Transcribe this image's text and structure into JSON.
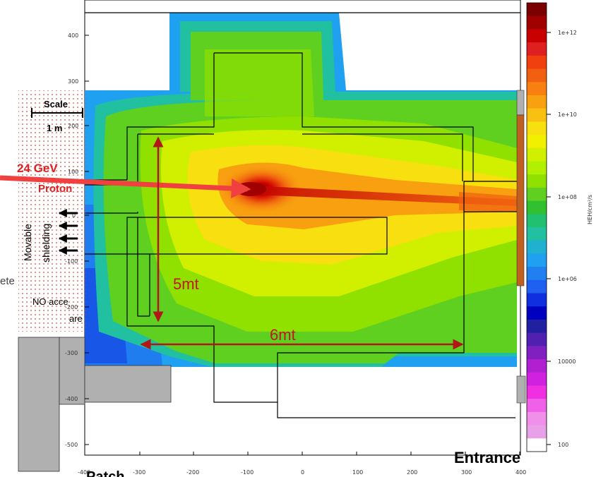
{
  "labels": {
    "beam_energy": "24 GeV",
    "beam_particle": "Proton",
    "scale_title": "Scale",
    "scale_value": "1 m",
    "movable_shielding_line1": "Movable",
    "movable_shielding_line2": "shielding",
    "concrete": "ete",
    "no_access_line1": "NO acce",
    "no_access_line2": "are",
    "dim_vertical": "5mt",
    "dim_horizontal": "6mt",
    "entrance": "Entrance",
    "patch": "Patch",
    "colorbar_unit": "HEH/cm²/s"
  },
  "axes": {
    "x_ticks": [
      "-400",
      "-300",
      "-200",
      "-100",
      "0",
      "100",
      "200",
      "300",
      "400"
    ],
    "y_ticks": [
      "400",
      "300",
      "200",
      "100",
      "0",
      "-100",
      "-200",
      "-300",
      "-400",
      "-500"
    ]
  },
  "colorbar": {
    "tick_labels": [
      "1e+12",
      "1e+10",
      "1e+08",
      "1e+06",
      "10000",
      "100"
    ],
    "colors": [
      "#7a0000",
      "#a00000",
      "#c80000",
      "#e02020",
      "#f04010",
      "#f06010",
      "#f88010",
      "#f8a010",
      "#f8c010",
      "#f8e010",
      "#f0f000",
      "#d0f000",
      "#b0f000",
      "#90e000",
      "#60d020",
      "#30c030",
      "#20c070",
      "#20c0a0",
      "#20b0d0",
      "#20a0f0",
      "#2080f0",
      "#2060f0",
      "#1030e0",
      "#0000c0",
      "#2020a0",
      "#5020b0",
      "#8020c0",
      "#b020d0",
      "#d020e0",
      "#f030e0",
      "#f060e8",
      "#f090e8",
      "#e8a0e8",
      "#ffffff"
    ]
  },
  "colors": {
    "arrow_red": "#b01818",
    "beam_red": "#f04040",
    "label_red": "#e02020",
    "dim_red": "#c01818",
    "shielding_gray": "#b0b0b0",
    "brown_bar": "#c06020"
  }
}
